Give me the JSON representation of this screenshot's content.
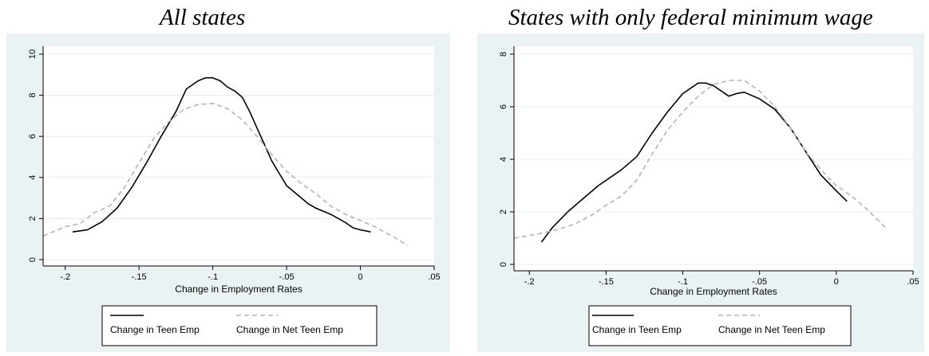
{
  "chart_data": [
    {
      "type": "line",
      "title": "All states",
      "xlabel": "Change in Employment Rates",
      "ylabel": "",
      "xlim": [
        -0.215,
        0.05
      ],
      "ylim": [
        0,
        10
      ],
      "x_ticks": [
        -0.2,
        -0.15,
        -0.1,
        -0.05,
        0,
        0.05
      ],
      "x_tick_labels": [
        "-.2",
        "-.15",
        "-.1",
        "-.05",
        "0",
        ".05"
      ],
      "y_ticks": [
        0,
        2,
        4,
        6,
        8,
        10
      ],
      "y_tick_labels": [
        "0",
        "2",
        "4",
        "6",
        "8",
        "10"
      ],
      "grid": true,
      "legend_position": "bottom",
      "series": [
        {
          "name": "Change in Teen Emp",
          "style": "solid",
          "color": "#000000",
          "x": [
            -0.195,
            -0.185,
            -0.175,
            -0.165,
            -0.155,
            -0.145,
            -0.135,
            -0.125,
            -0.118,
            -0.11,
            -0.105,
            -0.1,
            -0.095,
            -0.09,
            -0.085,
            -0.08,
            -0.075,
            -0.07,
            -0.065,
            -0.06,
            -0.055,
            -0.05,
            -0.045,
            -0.04,
            -0.035,
            -0.03,
            -0.02,
            -0.01,
            -0.005,
            0.0,
            0.007
          ],
          "y": [
            1.35,
            1.45,
            1.85,
            2.5,
            3.5,
            4.7,
            6.0,
            7.2,
            8.3,
            8.7,
            8.85,
            8.85,
            8.7,
            8.4,
            8.2,
            7.9,
            7.2,
            6.4,
            5.6,
            4.8,
            4.2,
            3.6,
            3.3,
            3.0,
            2.7,
            2.5,
            2.2,
            1.8,
            1.55,
            1.45,
            1.35
          ]
        },
        {
          "name": "Change in Net Teen Emp",
          "style": "dashed",
          "color": "#b4b4b4",
          "x": [
            -0.215,
            -0.2,
            -0.19,
            -0.18,
            -0.17,
            -0.16,
            -0.15,
            -0.14,
            -0.13,
            -0.12,
            -0.11,
            -0.1,
            -0.09,
            -0.08,
            -0.07,
            -0.06,
            -0.05,
            -0.04,
            -0.03,
            -0.02,
            -0.01,
            0.0,
            0.01,
            0.02,
            0.032
          ],
          "y": [
            1.15,
            1.6,
            1.75,
            2.3,
            2.6,
            3.5,
            4.7,
            5.9,
            6.7,
            7.3,
            7.55,
            7.6,
            7.35,
            6.8,
            6.0,
            5.1,
            4.3,
            3.7,
            3.2,
            2.6,
            2.2,
            1.9,
            1.6,
            1.2,
            0.7
          ]
        }
      ]
    },
    {
      "type": "line",
      "title": "States with only federal minimum wage",
      "xlabel": "Change in Employment Rates",
      "ylabel": "",
      "xlim": [
        -0.21,
        0.05
      ],
      "ylim": [
        0,
        8
      ],
      "x_ticks": [
        -0.2,
        -0.15,
        -0.1,
        -0.05,
        0,
        0.05
      ],
      "x_tick_labels": [
        "-.2",
        "-.15",
        "-.1",
        "-.05",
        "0",
        ".05"
      ],
      "y_ticks": [
        0,
        2,
        4,
        6,
        8
      ],
      "y_tick_labels": [
        "0",
        "2",
        "4",
        "6",
        "8"
      ],
      "grid": true,
      "legend_position": "bottom",
      "series": [
        {
          "name": "Change in Teen Emp",
          "style": "solid",
          "color": "#000000",
          "x": [
            -0.192,
            -0.185,
            -0.175,
            -0.165,
            -0.155,
            -0.145,
            -0.14,
            -0.13,
            -0.12,
            -0.11,
            -0.1,
            -0.09,
            -0.085,
            -0.08,
            -0.075,
            -0.07,
            -0.065,
            -0.06,
            -0.05,
            -0.04,
            -0.03,
            -0.02,
            -0.01,
            0.0,
            0.007
          ],
          "y": [
            0.85,
            1.4,
            2.0,
            2.5,
            3.0,
            3.4,
            3.6,
            4.1,
            5.0,
            5.8,
            6.5,
            6.9,
            6.9,
            6.8,
            6.6,
            6.4,
            6.5,
            6.55,
            6.3,
            5.9,
            5.2,
            4.3,
            3.4,
            2.8,
            2.4
          ]
        },
        {
          "name": "Change in Net Teen Emp",
          "style": "dashed",
          "color": "#b4b4b4",
          "x": [
            -0.21,
            -0.195,
            -0.18,
            -0.17,
            -0.16,
            -0.15,
            -0.14,
            -0.13,
            -0.12,
            -0.11,
            -0.1,
            -0.09,
            -0.08,
            -0.07,
            -0.06,
            -0.05,
            -0.04,
            -0.03,
            -0.02,
            -0.01,
            0.0,
            0.01,
            0.02,
            0.032
          ],
          "y": [
            1.0,
            1.15,
            1.35,
            1.55,
            1.85,
            2.25,
            2.6,
            3.2,
            4.2,
            5.1,
            5.8,
            6.4,
            6.85,
            7.0,
            7.0,
            6.6,
            6.0,
            5.2,
            4.3,
            3.6,
            3.0,
            2.6,
            2.1,
            1.4
          ]
        }
      ]
    }
  ]
}
